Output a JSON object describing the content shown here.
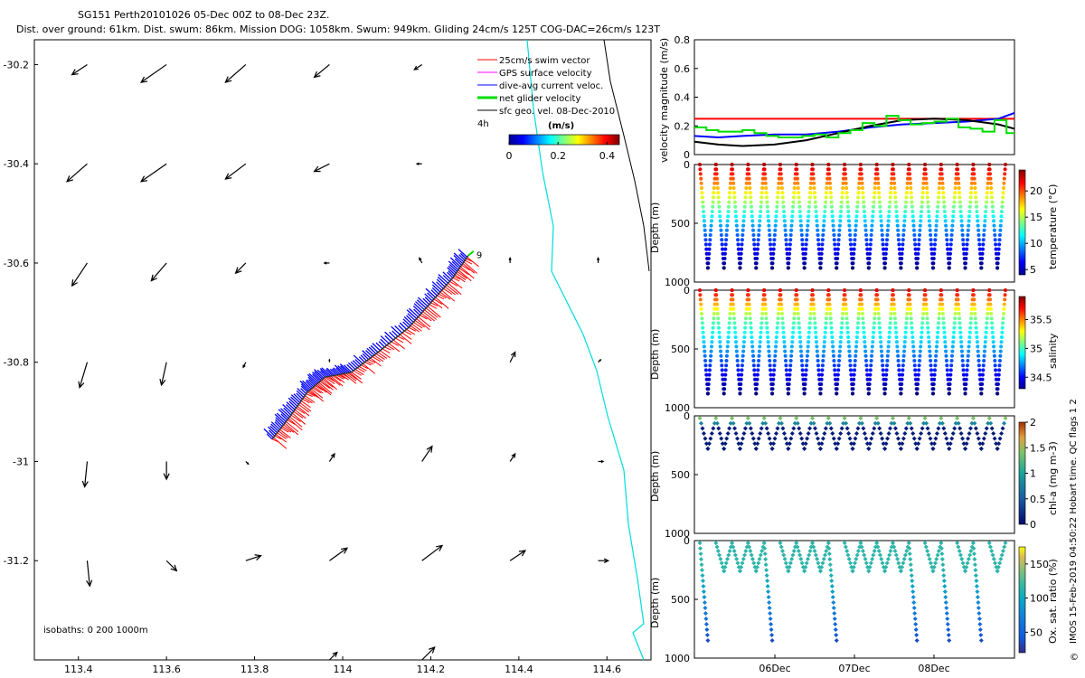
{
  "title": {
    "line1": "SG151 Perth20101026 05-Dec 00Z to 08-Dec 23Z.",
    "line2": "Dist. over ground: 61km. Dist. swum: 86km. Mission DOG: 1058km. Swum: 949km. Gliding 24cm/s 125T COG-DAC=26cm/s 123T"
  },
  "colors": {
    "swim": "#ff0000",
    "gps": "#ff00ff",
    "dac": "#0000ff",
    "net": "#00dd00",
    "geo": "#000000",
    "coast": "#00dddd"
  },
  "chart_data": [
    {
      "type": "scatter",
      "name": "map",
      "xlabel": "",
      "ylabel": "",
      "xlim": [
        113.3,
        114.7
      ],
      "ylim": [
        -31.4,
        -30.15
      ],
      "xticks": [
        "113.4",
        "113.6",
        "113.8",
        "114",
        "114.2",
        "114.4",
        "114.6"
      ],
      "yticks": [
        "-30.2",
        "-30.4",
        "-30.6",
        "-30.8",
        "-31",
        "-31.2"
      ],
      "legend": [
        "25cm/s swim vector",
        "GPS surface velocity",
        "dive-avg current veloc.",
        "net glider velocity",
        "sfc geo. vel. 08-Dec-2010"
      ],
      "legend_extra": "4h",
      "colorbar": {
        "label": "(m/s)",
        "ticks": [
          "0",
          "0.2",
          "0.4"
        ],
        "range": [
          0,
          0.45
        ]
      },
      "isobaths": "isobaths: 0   200  1000m",
      "track": {
        "points": [
          [
            113.84,
            -30.955
          ],
          [
            113.88,
            -30.91
          ],
          [
            113.92,
            -30.86
          ],
          [
            113.96,
            -30.83
          ],
          [
            114.02,
            -30.82
          ],
          [
            114.08,
            -30.78
          ],
          [
            114.15,
            -30.73
          ],
          [
            114.2,
            -30.68
          ],
          [
            114.25,
            -30.63
          ],
          [
            114.285,
            -30.585
          ]
        ],
        "end_label": "9"
      },
      "geo_vectors": [
        [
          113.42,
          -30.2,
          -0.06,
          -0.04
        ],
        [
          113.6,
          -30.2,
          -0.1,
          -0.07
        ],
        [
          113.78,
          -30.2,
          -0.08,
          -0.07
        ],
        [
          113.97,
          -30.2,
          -0.06,
          -0.05
        ],
        [
          114.18,
          -30.2,
          -0.03,
          -0.02
        ],
        [
          113.42,
          -30.4,
          -0.08,
          -0.07
        ],
        [
          113.6,
          -30.4,
          -0.1,
          -0.07
        ],
        [
          113.78,
          -30.4,
          -0.08,
          -0.06
        ],
        [
          113.97,
          -30.4,
          -0.06,
          -0.03
        ],
        [
          114.18,
          -30.4,
          -0.02,
          0
        ],
        [
          113.42,
          -30.6,
          -0.06,
          -0.09
        ],
        [
          113.6,
          -30.6,
          -0.06,
          -0.07
        ],
        [
          113.78,
          -30.6,
          -0.04,
          -0.04
        ],
        [
          113.97,
          -30.6,
          -0.02,
          0
        ],
        [
          114.18,
          -30.6,
          -0.01,
          0.02
        ],
        [
          114.38,
          -30.6,
          0,
          0.02
        ],
        [
          114.58,
          -30.6,
          0,
          0.02
        ],
        [
          113.42,
          -30.8,
          -0.03,
          -0.1
        ],
        [
          113.6,
          -30.8,
          -0.02,
          -0.09
        ],
        [
          113.78,
          -30.8,
          -0.01,
          -0.02
        ],
        [
          113.97,
          -30.8,
          0,
          0.01
        ],
        [
          114.38,
          -30.8,
          0.02,
          0.04
        ],
        [
          114.58,
          -30.8,
          0.01,
          0.01
        ],
        [
          113.42,
          -31.0,
          -0.01,
          -0.1
        ],
        [
          113.6,
          -31.0,
          0,
          -0.07
        ],
        [
          113.78,
          -31.0,
          0.01,
          -0.01
        ],
        [
          113.97,
          -31.0,
          0.02,
          0.03
        ],
        [
          114.18,
          -31.0,
          0.04,
          0.06
        ],
        [
          114.38,
          -31.0,
          0.02,
          0.03
        ],
        [
          114.58,
          -31.0,
          0.02,
          0
        ],
        [
          113.42,
          -31.2,
          0.01,
          -0.1
        ],
        [
          113.6,
          -31.2,
          0.04,
          -0.04
        ],
        [
          113.78,
          -31.2,
          0.06,
          0.02
        ],
        [
          113.97,
          -31.2,
          0.07,
          0.05
        ],
        [
          114.18,
          -31.2,
          0.08,
          0.06
        ],
        [
          114.38,
          -31.2,
          0.06,
          0.04
        ],
        [
          114.58,
          -31.2,
          0.04,
          0
        ],
        [
          113.97,
          -31.4,
          0.03,
          0.03
        ],
        [
          114.18,
          -31.4,
          0.05,
          0.05
        ]
      ]
    },
    {
      "type": "line",
      "name": "velocity",
      "ylabel": "velocity magnitude (m/s)",
      "ylim": [
        0,
        0.8
      ],
      "yticks": [
        "0",
        "0.2",
        "0.4",
        "0.6",
        "0.8"
      ],
      "x_days": [
        0,
        4
      ],
      "series": [
        {
          "name": "swim",
          "color": "#ff0000",
          "x": [
            0,
            4
          ],
          "y": [
            0.25,
            0.25
          ]
        },
        {
          "name": "dive-avg current",
          "color": "#0000ff",
          "x": [
            0,
            0.3,
            0.6,
            1,
            1.4,
            1.8,
            2.2,
            2.6,
            3,
            3.4,
            3.8,
            4
          ],
          "y": [
            0.13,
            0.12,
            0.13,
            0.14,
            0.14,
            0.16,
            0.19,
            0.21,
            0.22,
            0.23,
            0.25,
            0.29
          ]
        },
        {
          "name": "sfc geo",
          "color": "#000000",
          "x": [
            0,
            0.3,
            0.6,
            1,
            1.4,
            1.8,
            2.2,
            2.6,
            3,
            3.4,
            3.8,
            4
          ],
          "y": [
            0.09,
            0.07,
            0.06,
            0.07,
            0.1,
            0.15,
            0.2,
            0.24,
            0.25,
            0.24,
            0.21,
            0.18
          ]
        },
        {
          "name": "net glider",
          "color": "#00dd00",
          "x": [
            0,
            0.15,
            0.3,
            0.45,
            0.6,
            0.75,
            0.9,
            1.05,
            1.2,
            1.35,
            1.5,
            1.65,
            1.8,
            1.95,
            2.1,
            2.25,
            2.4,
            2.55,
            2.7,
            2.85,
            3,
            3.15,
            3.3,
            3.45,
            3.6,
            3.75,
            3.9,
            4
          ],
          "y": [
            0.19,
            0.17,
            0.16,
            0.16,
            0.17,
            0.15,
            0.13,
            0.12,
            0.12,
            0.13,
            0.14,
            0.12,
            0.15,
            0.17,
            0.22,
            0.2,
            0.27,
            0.24,
            0.21,
            0.22,
            0.23,
            0.25,
            0.19,
            0.18,
            0.16,
            0.24,
            0.15,
            0.12
          ]
        }
      ]
    },
    {
      "type": "scatter",
      "name": "temperature",
      "ylabel": "Depth (m)",
      "cblabel": "temperature (°C)",
      "cbticks": [
        "5",
        "10",
        "15",
        "20"
      ],
      "cbrange": [
        4,
        24
      ],
      "yticks": [
        "0",
        "500",
        "1000"
      ],
      "ylim": [
        0,
        1000
      ],
      "dives": 19,
      "maxdepth": 880
    },
    {
      "type": "scatter",
      "name": "salinity",
      "ylabel": "Depth (m)",
      "cblabel": "salinity",
      "cbticks": [
        "34.5",
        "35",
        "35.5"
      ],
      "cbrange": [
        34.3,
        35.9
      ],
      "yticks": [
        "0",
        "500",
        "1000"
      ],
      "ylim": [
        0,
        1000
      ],
      "dives": 19,
      "maxdepth": 880
    },
    {
      "type": "scatter",
      "name": "chla",
      "ylabel": "Depth (m)",
      "cblabel": "chl-a (mg m-3)",
      "cbticks": [
        "0",
        "0.5",
        "1",
        "1.5",
        "2"
      ],
      "cbrange": [
        0,
        2
      ],
      "yticks": [
        "0",
        "500",
        "1000"
      ],
      "ylim": [
        0,
        1000
      ],
      "dives": 19,
      "maxdepth": 300
    },
    {
      "type": "scatter",
      "name": "oxygen",
      "ylabel": "Depth (m)",
      "cblabel": "Ox. sat. ratio (%)",
      "cbticks": [
        "50",
        "100",
        "150"
      ],
      "cbrange": [
        20,
        175
      ],
      "yticks": [
        "0",
        "500",
        "1000"
      ],
      "ylim": [
        0,
        1000
      ],
      "dives": 19,
      "maxdepth": 850,
      "xticks": [
        "06Dec",
        "07Dec",
        "08Dec"
      ]
    }
  ],
  "side_text": "IMOS 15-Feb-2019 04:50:22 Hobart time. QC flags 1  2",
  "copyright": "©"
}
